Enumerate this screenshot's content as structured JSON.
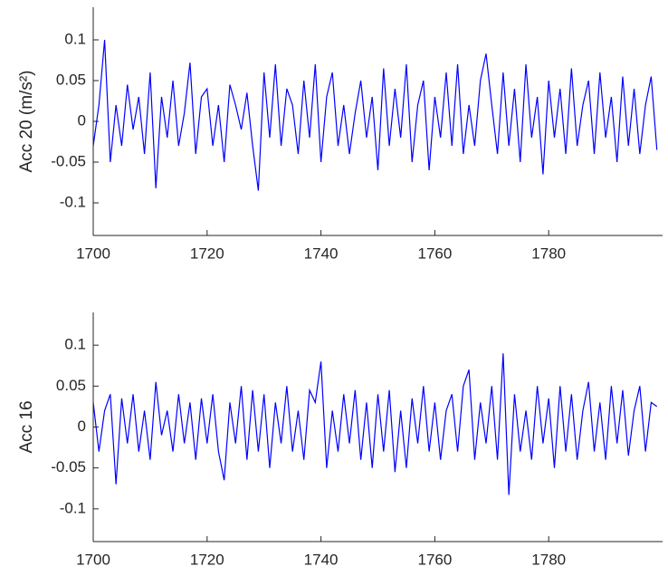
{
  "chart_data": [
    {
      "type": "line",
      "ylabel": "Acc 20 (m/s²)",
      "x": [
        1700,
        1701,
        1702,
        1703,
        1704,
        1705,
        1706,
        1707,
        1708,
        1709,
        1710,
        1711,
        1712,
        1713,
        1714,
        1715,
        1716,
        1717,
        1718,
        1719,
        1720,
        1721,
        1722,
        1723,
        1724,
        1725,
        1726,
        1727,
        1728,
        1729,
        1730,
        1731,
        1732,
        1733,
        1734,
        1735,
        1736,
        1737,
        1738,
        1739,
        1740,
        1741,
        1742,
        1743,
        1744,
        1745,
        1746,
        1747,
        1748,
        1749,
        1750,
        1751,
        1752,
        1753,
        1754,
        1755,
        1756,
        1757,
        1758,
        1759,
        1760,
        1761,
        1762,
        1763,
        1764,
        1765,
        1766,
        1767,
        1768,
        1769,
        1770,
        1771,
        1772,
        1773,
        1774,
        1775,
        1776,
        1777,
        1778,
        1779,
        1780,
        1781,
        1782,
        1783,
        1784,
        1785,
        1786,
        1787,
        1788,
        1789,
        1790,
        1791,
        1792,
        1793,
        1794,
        1795,
        1796,
        1797,
        1798,
        1799
      ],
      "series": [
        {
          "color": "#0000ff",
          "values": [
            -0.03,
            0.02,
            0.1,
            -0.05,
            0.02,
            -0.03,
            0.045,
            -0.01,
            0.03,
            -0.04,
            0.06,
            -0.082,
            0.03,
            -0.02,
            0.05,
            -0.03,
            0.01,
            0.072,
            -0.04,
            0.03,
            0.04,
            -0.03,
            0.02,
            -0.05,
            0.045,
            0.02,
            -0.01,
            0.035,
            -0.03,
            -0.085,
            0.06,
            -0.02,
            0.07,
            -0.03,
            0.04,
            0.02,
            -0.04,
            0.05,
            -0.02,
            0.07,
            -0.05,
            0.03,
            0.06,
            -0.03,
            0.02,
            -0.04,
            0.01,
            0.05,
            -0.02,
            0.03,
            -0.06,
            0.065,
            -0.03,
            0.04,
            -0.02,
            0.07,
            -0.05,
            0.02,
            0.05,
            -0.06,
            0.03,
            -0.02,
            0.06,
            -0.03,
            0.07,
            -0.04,
            0.02,
            -0.03,
            0.05,
            0.083,
            0.02,
            -0.04,
            0.06,
            -0.03,
            0.04,
            -0.05,
            0.07,
            -0.02,
            0.03,
            -0.065,
            0.05,
            -0.02,
            0.04,
            -0.04,
            0.065,
            -0.03,
            0.02,
            0.05,
            -0.04,
            0.06,
            -0.02,
            0.03,
            -0.05,
            0.055,
            -0.03,
            0.04,
            -0.04,
            0.02,
            0.055,
            -0.035
          ]
        }
      ],
      "xlim": [
        1700,
        1800
      ],
      "xticks": [
        1700,
        1720,
        1740,
        1760,
        1780
      ],
      "ylim": [
        -0.14,
        0.14
      ],
      "yticks": [
        0.1,
        0.05,
        0,
        -0.05,
        -0.1
      ]
    },
    {
      "type": "line",
      "ylabel": "Acc 16",
      "x": [
        1700,
        1701,
        1702,
        1703,
        1704,
        1705,
        1706,
        1707,
        1708,
        1709,
        1710,
        1711,
        1712,
        1713,
        1714,
        1715,
        1716,
        1717,
        1718,
        1719,
        1720,
        1721,
        1722,
        1723,
        1724,
        1725,
        1726,
        1727,
        1728,
        1729,
        1730,
        1731,
        1732,
        1733,
        1734,
        1735,
        1736,
        1737,
        1738,
        1739,
        1740,
        1741,
        1742,
        1743,
        1744,
        1745,
        1746,
        1747,
        1748,
        1749,
        1750,
        1751,
        1752,
        1753,
        1754,
        1755,
        1756,
        1757,
        1758,
        1759,
        1760,
        1761,
        1762,
        1763,
        1764,
        1765,
        1766,
        1767,
        1768,
        1769,
        1770,
        1771,
        1772,
        1773,
        1774,
        1775,
        1776,
        1777,
        1778,
        1779,
        1780,
        1781,
        1782,
        1783,
        1784,
        1785,
        1786,
        1787,
        1788,
        1789,
        1790,
        1791,
        1792,
        1793,
        1794,
        1795,
        1796,
        1797,
        1798,
        1799
      ],
      "series": [
        {
          "color": "#0000ff",
          "values": [
            0.03,
            -0.03,
            0.02,
            0.04,
            -0.07,
            0.035,
            -0.02,
            0.04,
            -0.03,
            0.02,
            -0.04,
            0.055,
            -0.01,
            0.02,
            -0.03,
            0.04,
            -0.02,
            0.03,
            -0.04,
            0.035,
            -0.02,
            0.04,
            -0.03,
            -0.065,
            0.03,
            -0.02,
            0.05,
            -0.04,
            0.045,
            -0.03,
            0.04,
            -0.05,
            0.03,
            -0.02,
            0.05,
            -0.03,
            0.02,
            -0.04,
            0.045,
            0.03,
            0.08,
            -0.05,
            0.02,
            -0.03,
            0.04,
            -0.02,
            0.045,
            -0.04,
            0.03,
            -0.05,
            0.04,
            -0.03,
            0.045,
            -0.055,
            0.02,
            -0.05,
            0.035,
            -0.02,
            0.05,
            -0.03,
            0.03,
            -0.04,
            0.02,
            0.04,
            -0.03,
            0.05,
            0.07,
            -0.04,
            0.03,
            -0.02,
            0.05,
            -0.04,
            0.09,
            -0.083,
            0.04,
            -0.03,
            0.02,
            -0.04,
            0.05,
            -0.02,
            0.035,
            -0.05,
            0.05,
            -0.03,
            0.04,
            -0.04,
            0.02,
            0.055,
            -0.03,
            0.03,
            -0.04,
            0.05,
            -0.02,
            0.045,
            -0.035,
            0.02,
            0.05,
            -0.03,
            0.03,
            0.025
          ]
        }
      ],
      "xlim": [
        1700,
        1800
      ],
      "xticks": [
        1700,
        1720,
        1740,
        1760,
        1780
      ],
      "ylim": [
        -0.14,
        0.14
      ],
      "yticks": [
        0.1,
        0.05,
        0,
        -0.05,
        -0.1
      ]
    }
  ]
}
